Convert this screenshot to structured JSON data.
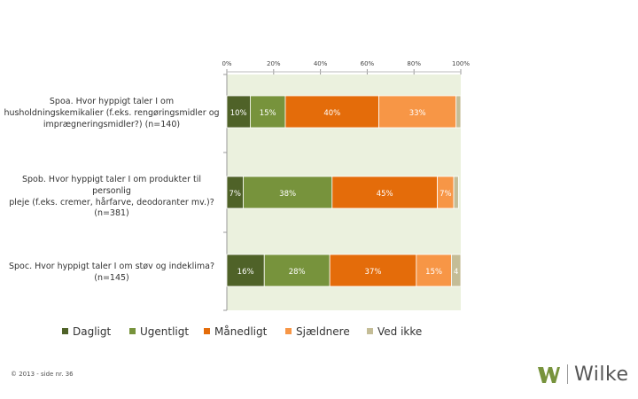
{
  "chart_data": {
    "type": "bar",
    "orientation": "horizontal",
    "stacked": true,
    "percent_scale": true,
    "xlim": [
      0,
      100
    ],
    "x_ticks": [
      "0%",
      "20%",
      "40%",
      "60%",
      "80%",
      "100%"
    ],
    "categories": [
      "Spoa. Hvor hyppigt taler I om husholdningskemikalier (f.eks. rengøringsmidler og imprægneringsmidler?) (n=140)",
      "Spob. Hvor hyppigt taler I om produkter til personlig pleje (f.eks. cremer, hårfarve, deodoranter mv.)? (n=381)",
      "Spoc. Hvor hyppigt taler I om støv og indeklima? (n=145)"
    ],
    "category_lines": [
      [
        "Spoa. Hvor hyppigt taler I om",
        "husholdningskemikalier (f.eks. rengøringsmidler og",
        "imprægneringsmidler?) (n=140)"
      ],
      [
        "Spob. Hvor hyppigt taler I om produkter til personlig",
        "pleje (f.eks. cremer, hårfarve, deodoranter mv.)?",
        "(n=381)"
      ],
      [
        "Spoc. Hvor hyppigt taler I om støv og indeklima?",
        "(n=145)"
      ]
    ],
    "series": [
      {
        "name": "Dagligt",
        "color": "#4f6228",
        "values": [
          10,
          7,
          16
        ],
        "labels": [
          "10%",
          "7%",
          "16%"
        ]
      },
      {
        "name": "Ugentligt",
        "color": "#77933c",
        "values": [
          15,
          38,
          28
        ],
        "labels": [
          "15%",
          "38%",
          "28%"
        ]
      },
      {
        "name": "Månedligt",
        "color": "#e46c0a",
        "values": [
          40,
          45,
          37
        ],
        "labels": [
          "40%",
          "45%",
          "37%"
        ]
      },
      {
        "name": "Sjældnere",
        "color": "#f79646",
        "values": [
          33,
          7,
          15
        ],
        "labels": [
          "33%",
          "7%",
          "15%"
        ]
      },
      {
        "name": "Ved ikke",
        "color": "#c4bd97",
        "values": [
          2,
          2,
          4
        ],
        "labels": [
          "",
          "",
          "4"
        ]
      }
    ],
    "plot_background": "#ebf1de",
    "legend_position": "bottom"
  },
  "footer": {
    "text": "© 2013 - side nr. 36"
  },
  "logo": {
    "text": "Wilke",
    "mark_color": "#77933c"
  }
}
